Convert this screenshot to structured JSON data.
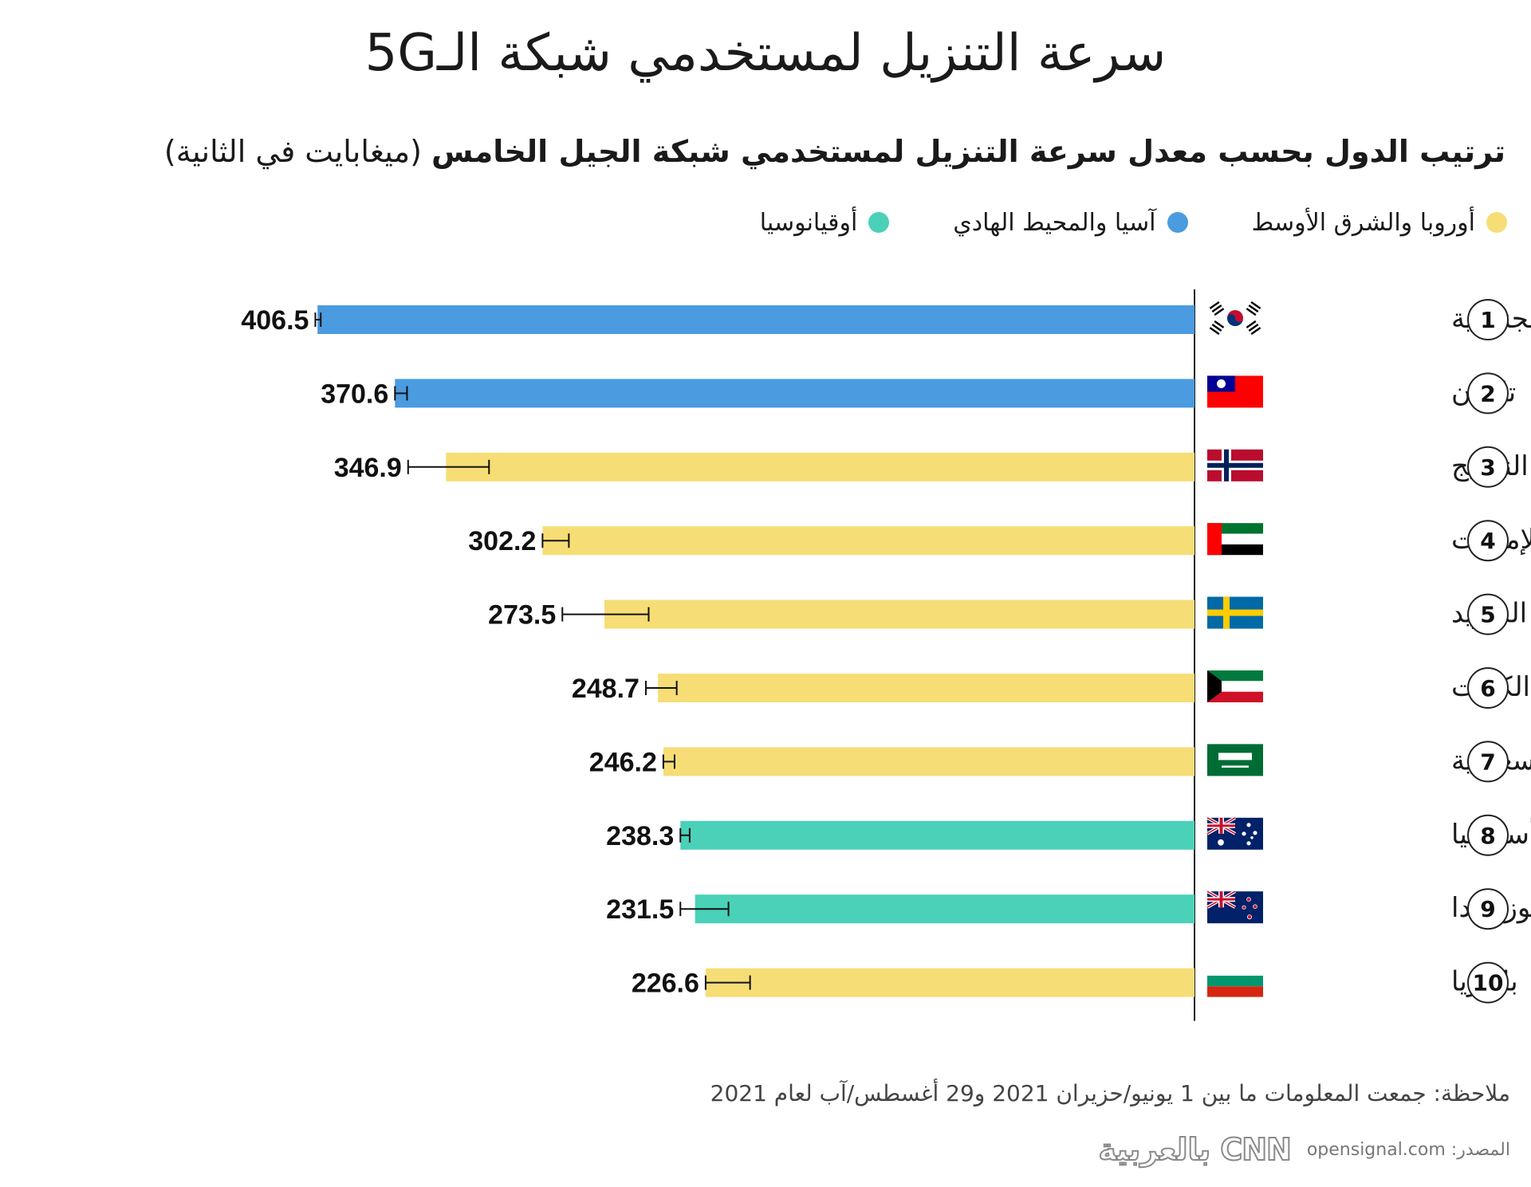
{
  "title": "سرعة التنزيل لمستخدمي شبكة الـ5G",
  "subtitle": {
    "bold": "ترتيب الدول بحسب معدل سرعة التنزيل لمستخدمي شبكة الجيل الخامس",
    "unit": "(ميغابايت في الثانية)"
  },
  "legend": [
    {
      "label": "أوروبا والشرق الأوسط",
      "color": "#f6dd75"
    },
    {
      "label": "آسيا والمحيط الهادي",
      "color": "#4a9be0"
    },
    {
      "label": "أوقيانوسيا",
      "color": "#4ad1b8"
    }
  ],
  "chart_data": {
    "type": "bar",
    "orientation": "horizontal",
    "direction": "right-to-left",
    "categories": [
      "كوريا الجنـوبية",
      "تايوان",
      "النرويج",
      "الإمارات",
      "السويد",
      "الكويت",
      "السعودية",
      "أستراليا",
      "نيوزيلاندا",
      "بلغاريا"
    ],
    "ranks": [
      "1",
      "2",
      "3",
      "4",
      "5",
      "6",
      "7",
      "8",
      "9",
      "10"
    ],
    "values": [
      406.5,
      370.6,
      346.9,
      302.2,
      273.5,
      248.7,
      246.2,
      238.3,
      231.5,
      226.6
    ],
    "error_low": [
      405.0,
      365.0,
      327.0,
      290.0,
      253.0,
      240.0,
      241.0,
      234.0,
      216.0,
      206.0
    ],
    "error_high": [
      407.5,
      370.6,
      364.5,
      302.2,
      293.0,
      254.3,
      246.2,
      238.3,
      238.3,
      226.6
    ],
    "region": [
      "آسيا والمحيط الهادي",
      "آسيا والمحيط الهادي",
      "أوروبا والشرق الأوسط",
      "أوروبا والشرق الأوسط",
      "أوروبا والشرق الأوسط",
      "أوروبا والشرق الأوسط",
      "أوروبا والشرق الأوسط",
      "أوقيانوسيا",
      "أوقيانوسيا",
      "أوروبا والشرق الأوسط"
    ],
    "flags": [
      "south-korea-flag",
      "taiwan-flag",
      "norway-flag",
      "uae-flag",
      "sweden-flag",
      "kuwait-flag",
      "saudi-arabia-flag",
      "australia-flag",
      "new-zealand-flag",
      "bulgaria-flag"
    ],
    "xlim": [
      0,
      410
    ],
    "grid": false,
    "legend_position": "top"
  },
  "note": "ملاحظة: جمعت المعلومات ما بين 1 يونيو/حزيران 2021 و29 أغسطس/آب لعام 2021",
  "source": {
    "label": "المصدر:",
    "url": "opensignal.com"
  },
  "logo": "CNN بالعربية"
}
